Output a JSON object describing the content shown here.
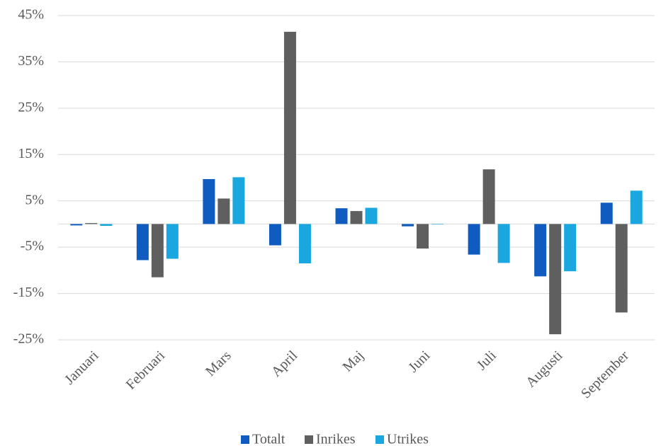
{
  "chart_data": {
    "type": "bar",
    "categories": [
      "Januari",
      "Februari",
      "Mars",
      "April",
      "Maj",
      "Juni",
      "Juli",
      "Augusti",
      "September"
    ],
    "series": [
      {
        "name": "Totalt",
        "color": "#0f5bbf",
        "values": [
          -0.3,
          -7.8,
          9.7,
          -4.6,
          3.4,
          -0.5,
          -6.6,
          -11.3,
          4.6
        ]
      },
      {
        "name": "Inrikes",
        "color": "#5f5f5f",
        "values": [
          0.2,
          -11.5,
          5.5,
          41.5,
          2.8,
          -5.3,
          11.8,
          -23.8,
          -19.1
        ]
      },
      {
        "name": "Utrikes",
        "color": "#1aa7e0",
        "values": [
          -0.4,
          -7.5,
          10.1,
          -8.5,
          3.5,
          -0.1,
          -8.4,
          -10.2,
          7.2
        ]
      }
    ],
    "ylim": [
      -25,
      45
    ],
    "yticks": [
      {
        "value": -25,
        "label": "-25%"
      },
      {
        "value": -15,
        "label": "-15%"
      },
      {
        "value": -5,
        "label": "-5%"
      },
      {
        "value": 5,
        "label": "5%"
      },
      {
        "value": 15,
        "label": "15%"
      },
      {
        "value": 25,
        "label": "25%"
      },
      {
        "value": 35,
        "label": "35%"
      },
      {
        "value": 45,
        "label": "45%"
      }
    ],
    "grid": true,
    "legend": "bottom"
  }
}
